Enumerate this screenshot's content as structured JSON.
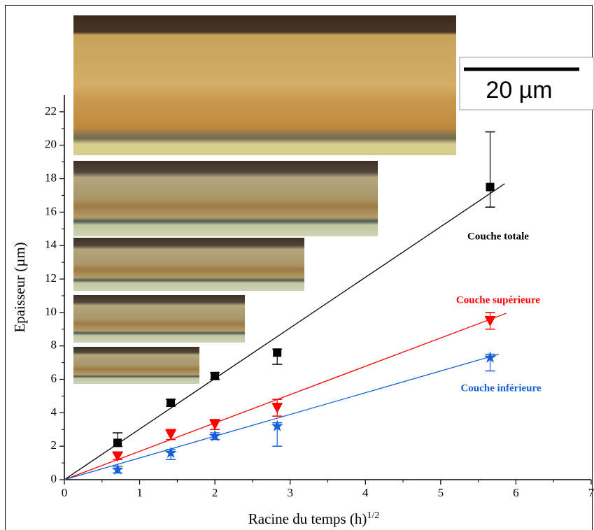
{
  "chart_data": {
    "type": "scatter",
    "xlabel": "Racine du temps (h)",
    "xlabel_sup": "1/2",
    "ylabel": "Epaisseur (µm)",
    "scale_bar": "20 µm",
    "x": [
      0.707,
      1.414,
      2,
      2.828,
      5.657
    ],
    "xlim": [
      0,
      7
    ],
    "xticks": [
      0,
      1,
      2,
      3,
      4,
      5,
      6,
      7
    ],
    "ylim": [
      0,
      23
    ],
    "yticks": [
      0,
      2,
      4,
      6,
      8,
      10,
      12,
      14,
      16,
      18,
      20,
      22
    ],
    "series": [
      {
        "name": "Couche totale",
        "color": "#000000",
        "marker": "square",
        "values": [
          2.2,
          4.6,
          6.2,
          7.6,
          17.5
        ],
        "err_plus": [
          0.6,
          0.2,
          0.2,
          0.2,
          3.3
        ],
        "err_minus": [
          0.2,
          0.2,
          0.2,
          0.7,
          1.2
        ],
        "fit_x": [
          0,
          5.85
        ],
        "fit_y": [
          0,
          17.7
        ]
      },
      {
        "name": "Couche supérieure",
        "color": "#ff0000",
        "marker": "triangle-down",
        "values": [
          1.4,
          2.7,
          3.3,
          4.3,
          9.5
        ],
        "err_plus": [
          0.2,
          0.3,
          0.3,
          0.5,
          0.5
        ],
        "err_minus": [
          0.2,
          0.3,
          0.3,
          0.5,
          0.5
        ],
        "fit_x": [
          0,
          5.87
        ],
        "fit_y": [
          0,
          9.95
        ]
      },
      {
        "name": "Couche inférieure",
        "color": "#1560d8",
        "marker": "star",
        "values": [
          0.6,
          1.6,
          2.6,
          3.2,
          7.3
        ],
        "err_plus": [
          0.2,
          0.2,
          0.2,
          0.2,
          0.2
        ],
        "err_minus": [
          0.2,
          0.4,
          0.2,
          1.2,
          0.8
        ],
        "fit_x": [
          0,
          5.77
        ],
        "fit_y": [
          0,
          7.5
        ]
      }
    ]
  }
}
